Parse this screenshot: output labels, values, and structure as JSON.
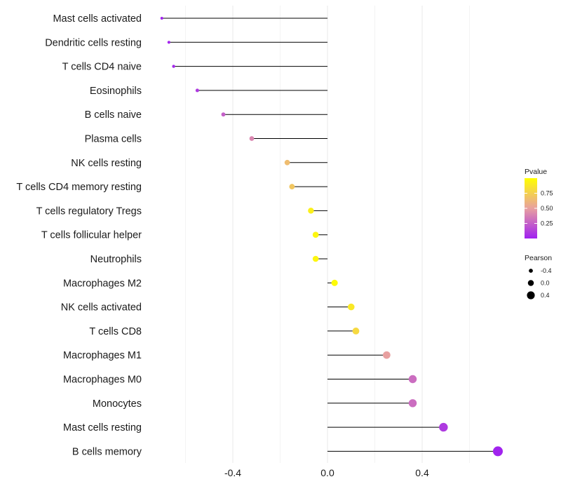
{
  "chart_data": {
    "type": "lollipop",
    "title": "",
    "xlabel": "",
    "ylabel": "",
    "xlim": [
      -0.8,
      0.8
    ],
    "x_ticks": [
      -0.4,
      0.0,
      0.4
    ],
    "x_tick_labels": [
      "-0.4",
      "0.0",
      "0.4"
    ],
    "grid": "vertical-major-and-minor",
    "categories": [
      "Mast cells activated",
      "Dendritic cells resting",
      "T cells CD4 naive",
      "Eosinophils",
      "B cells naive",
      "Plasma cells",
      "NK cells resting",
      "T cells CD4 memory resting",
      "T cells regulatory  Tregs ",
      "T cells follicular helper",
      "Neutrophils",
      "Macrophages M2",
      "NK cells activated",
      "T cells CD8",
      "Macrophages M1",
      "Macrophages M0",
      "Monocytes",
      "Mast cells resting",
      "B cells memory"
    ],
    "pearson": [
      -0.7,
      -0.67,
      -0.65,
      -0.55,
      -0.44,
      -0.32,
      -0.17,
      -0.15,
      -0.07,
      -0.05,
      -0.05,
      0.03,
      0.1,
      0.12,
      0.25,
      0.36,
      0.36,
      0.49,
      0.72
    ],
    "pvalue": [
      0.01,
      0.02,
      0.03,
      0.1,
      0.25,
      0.4,
      0.65,
      0.7,
      0.92,
      0.95,
      0.95,
      0.98,
      0.88,
      0.8,
      0.5,
      0.3,
      0.3,
      0.1,
      0.01
    ],
    "legend": {
      "color": {
        "title": "Pvalue",
        "ticks": [
          0.25,
          0.5,
          0.75
        ],
        "tick_labels": [
          "0.25",
          "0.50",
          "0.75"
        ],
        "range": [
          0.0,
          1.0
        ],
        "low_color": "#a020f0",
        "high_color": "#ffff00",
        "placement": "right"
      },
      "size": {
        "title": "Pearson",
        "values": [
          -0.4,
          0.0,
          0.4
        ],
        "labels": [
          "-0.4",
          "0.0",
          "0.4"
        ],
        "placement": "right"
      }
    },
    "stem_color": "#000000",
    "grid_color": "#ebebeb"
  }
}
